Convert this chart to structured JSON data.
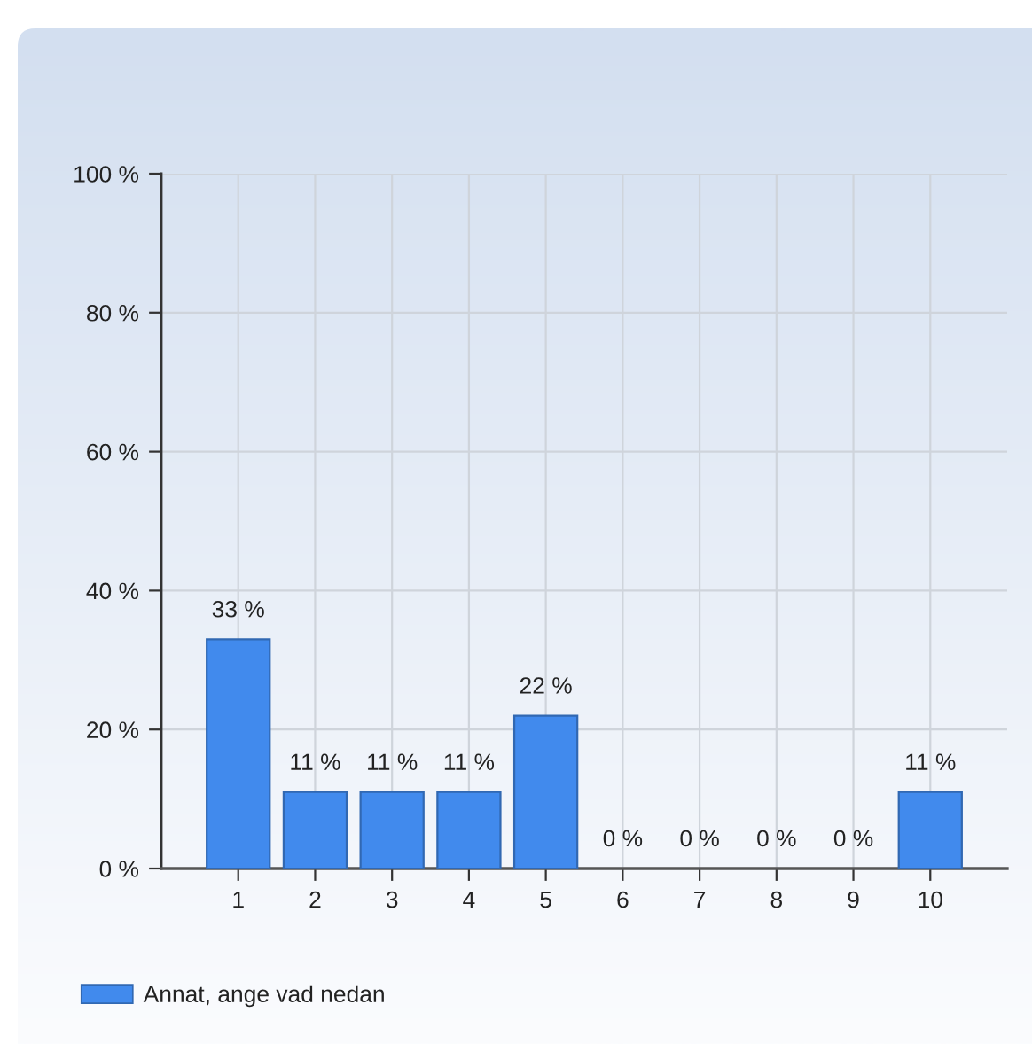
{
  "chart_data": {
    "type": "bar",
    "categories": [
      "1",
      "2",
      "3",
      "4",
      "5",
      "6",
      "7",
      "8",
      "9",
      "10"
    ],
    "series": [
      {
        "name": "Annat, ange vad nedan",
        "color": "#418aed",
        "values": [
          33,
          11,
          11,
          11,
          22,
          0,
          0,
          0,
          0,
          11
        ],
        "value_labels": [
          "33 %",
          "11 %",
          "11 %",
          "11 %",
          "22 %",
          "0 %",
          "0 %",
          "0 %",
          "0 %",
          "11 %"
        ]
      }
    ],
    "ylim": [
      0,
      100
    ],
    "yticks": [
      {
        "value": 0,
        "label": "0 %"
      },
      {
        "value": 20,
        "label": "20 %"
      },
      {
        "value": 40,
        "label": "40 %"
      },
      {
        "value": 60,
        "label": "60 %"
      },
      {
        "value": 80,
        "label": "80 %"
      },
      {
        "value": 100,
        "label": "100 %"
      }
    ],
    "grid": true,
    "legend": "bottom left"
  }
}
